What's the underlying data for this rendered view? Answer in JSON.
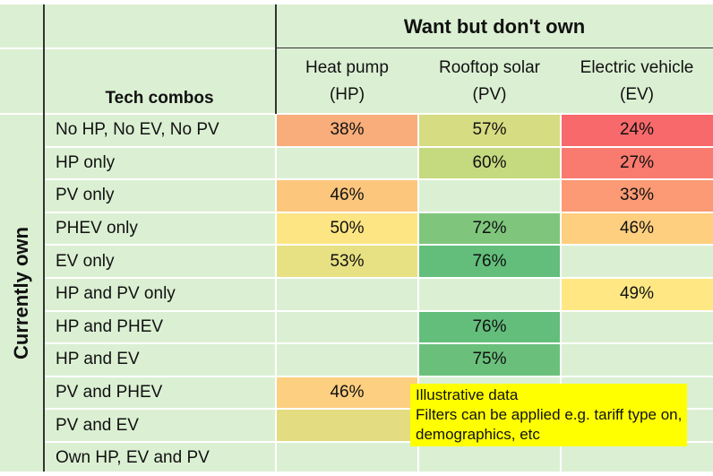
{
  "header": {
    "group_title": "Want but don't own",
    "row_axis_title": "Currently own",
    "row_header": "Tech combos"
  },
  "chart_data": {
    "type": "heatmap",
    "columns": [
      {
        "line1": "Heat pump",
        "line2": "(HP)"
      },
      {
        "line1": "Rooftop solar",
        "line2": "(PV)"
      },
      {
        "line1": "Electric vehicle",
        "line2": "(EV)"
      }
    ],
    "rows": [
      {
        "label": "No HP, No EV, No PV",
        "values": [
          "38%",
          "57%",
          "24%"
        ],
        "colors": [
          "#f8ad7a",
          "#d6dc82",
          "#f8696b"
        ]
      },
      {
        "label": "HP only",
        "values": [
          null,
          "60%",
          "27%"
        ],
        "colors": [
          null,
          "#c5d97e",
          "#f97a6e"
        ]
      },
      {
        "label": "PV  only",
        "values": [
          "46%",
          null,
          "33%"
        ],
        "colors": [
          "#fdc67d",
          null,
          "#fb9a74"
        ]
      },
      {
        "label": "PHEV only",
        "values": [
          "50%",
          "72%",
          "46%"
        ],
        "colors": [
          "#fee583",
          "#7fc67c",
          "#fecf7f"
        ]
      },
      {
        "label": "EV only",
        "values": [
          "53%",
          "76%",
          null
        ],
        "colors": [
          "#e8e183",
          "#63be7b",
          null
        ]
      },
      {
        "label": "HP and PV  only",
        "values": [
          null,
          null,
          "49%"
        ],
        "colors": [
          null,
          null,
          "#ffe884"
        ]
      },
      {
        "label": "HP and PHEV",
        "values": [
          null,
          "76%",
          null
        ],
        "colors": [
          null,
          "#63be7b",
          null
        ]
      },
      {
        "label": "HP and EV",
        "values": [
          null,
          "75%",
          null
        ],
        "colors": [
          null,
          "#6ac07b",
          null
        ]
      },
      {
        "label": "PV and PHEV",
        "values": [
          "46%",
          null,
          null
        ],
        "colors": [
          "#fdcf80",
          null,
          null
        ]
      },
      {
        "label": "PV and EV",
        "values": [
          null,
          null,
          null
        ],
        "colors": [
          "#e3dc80",
          null,
          null
        ]
      },
      {
        "label": "Own HP, EV and PV",
        "values": [
          null,
          null,
          null
        ],
        "colors": [
          null,
          null,
          null
        ]
      }
    ]
  },
  "note": {
    "lines": [
      "Illustrative data",
      "Filters can be applied e.g. tariff type on,",
      "demographics, etc"
    ]
  }
}
